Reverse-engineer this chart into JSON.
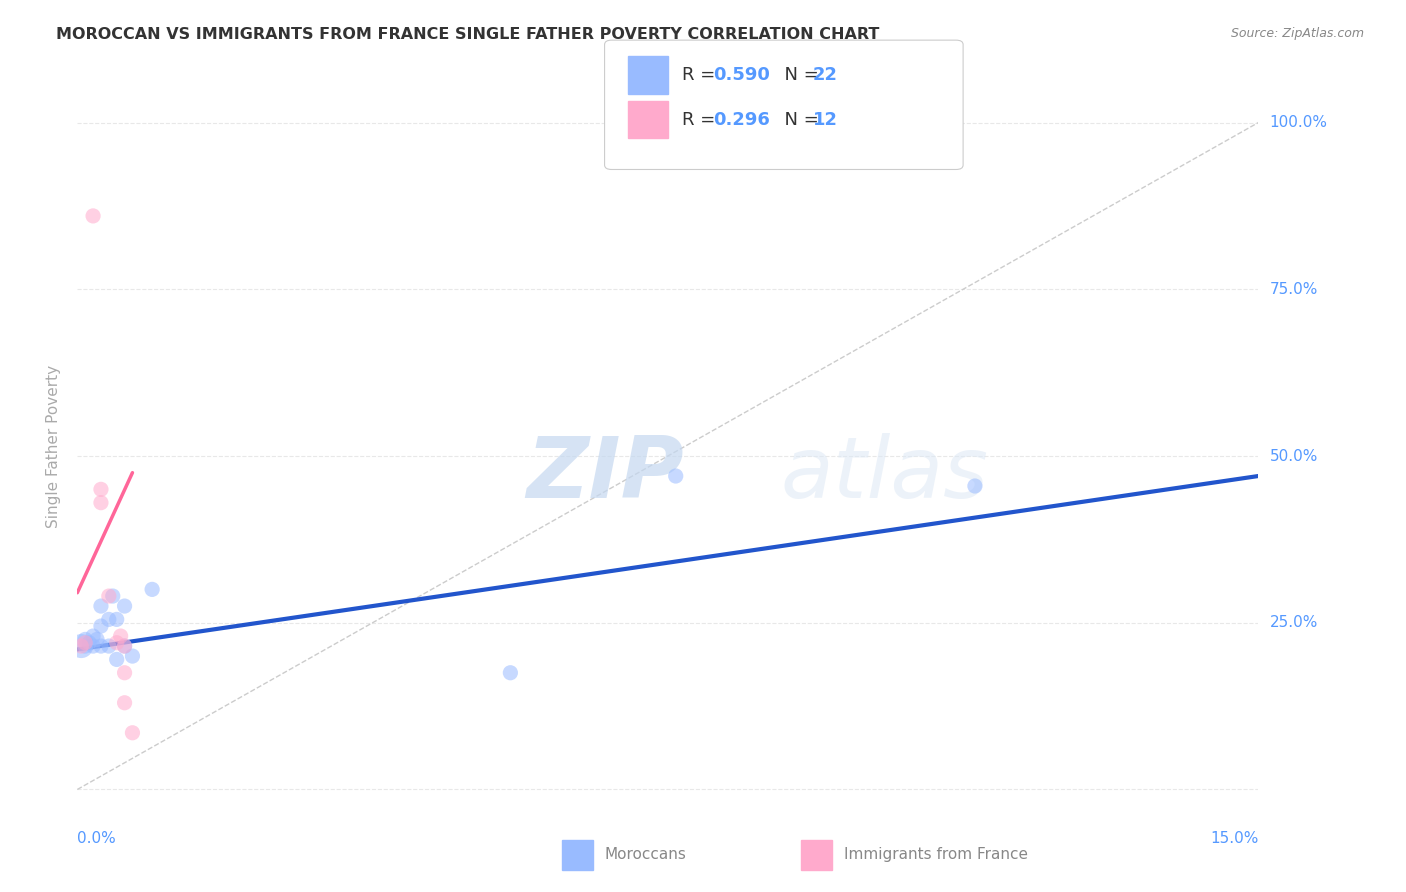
{
  "title": "MOROCCAN VS IMMIGRANTS FROM FRANCE SINGLE FATHER POVERTY CORRELATION CHART",
  "source": "Source: ZipAtlas.com",
  "ylabel": "Single Father Poverty",
  "yticks": [
    0.0,
    0.25,
    0.5,
    0.75,
    1.0
  ],
  "ytick_labels": [
    "",
    "25.0%",
    "50.0%",
    "75.0%",
    "100.0%"
  ],
  "xtick_labels": [
    "0.0%",
    "",
    "",
    "",
    "",
    "",
    "15.0%"
  ],
  "xlim": [
    0.0,
    0.15
  ],
  "ylim": [
    -0.02,
    1.05
  ],
  "background_color": "#ffffff",
  "watermark_zip": "ZIP",
  "watermark_atlas": "atlas",
  "legend_r1": "R = 0.590",
  "legend_n1": "N = 22",
  "legend_r2": "R = 0.296",
  "legend_n2": "N = 12",
  "blue_scatter_color": "#99bbff",
  "pink_scatter_color": "#ffaacc",
  "blue_line_color": "#2255cc",
  "pink_line_color": "#ff6699",
  "diag_line_color": "#cccccc",
  "axis_label_color": "#5599ff",
  "grid_color": "#e8e8e8",
  "moroccans_x": [
    0.0005,
    0.001,
    0.001,
    0.0015,
    0.002,
    0.002,
    0.0025,
    0.003,
    0.003,
    0.003,
    0.004,
    0.004,
    0.0045,
    0.005,
    0.005,
    0.006,
    0.006,
    0.007,
    0.0095,
    0.055,
    0.076,
    0.114
  ],
  "moroccans_y": [
    0.215,
    0.215,
    0.225,
    0.22,
    0.215,
    0.23,
    0.225,
    0.215,
    0.245,
    0.275,
    0.215,
    0.255,
    0.29,
    0.195,
    0.255,
    0.275,
    0.215,
    0.2,
    0.3,
    0.175,
    0.47,
    0.455
  ],
  "moroccans_size": [
    300,
    120,
    120,
    120,
    120,
    120,
    120,
    120,
    120,
    120,
    120,
    120,
    120,
    120,
    120,
    120,
    120,
    120,
    120,
    120,
    120,
    120
  ],
  "france_x": [
    0.0005,
    0.001,
    0.002,
    0.003,
    0.003,
    0.004,
    0.005,
    0.0055,
    0.006,
    0.006,
    0.006,
    0.007
  ],
  "france_y": [
    0.215,
    0.22,
    0.86,
    0.45,
    0.43,
    0.29,
    0.22,
    0.23,
    0.215,
    0.175,
    0.13,
    0.085
  ],
  "france_size": [
    120,
    120,
    120,
    120,
    120,
    120,
    120,
    120,
    120,
    120,
    120,
    120
  ],
  "blue_trendline_x": [
    0.0,
    0.15
  ],
  "blue_trendline_y": [
    0.21,
    0.47
  ],
  "pink_trendline_x": [
    0.0,
    0.007
  ],
  "pink_trendline_y": [
    0.295,
    0.475
  ],
  "diag_line_x": [
    0.0,
    0.15
  ],
  "diag_line_y": [
    0.0,
    1.0
  ]
}
